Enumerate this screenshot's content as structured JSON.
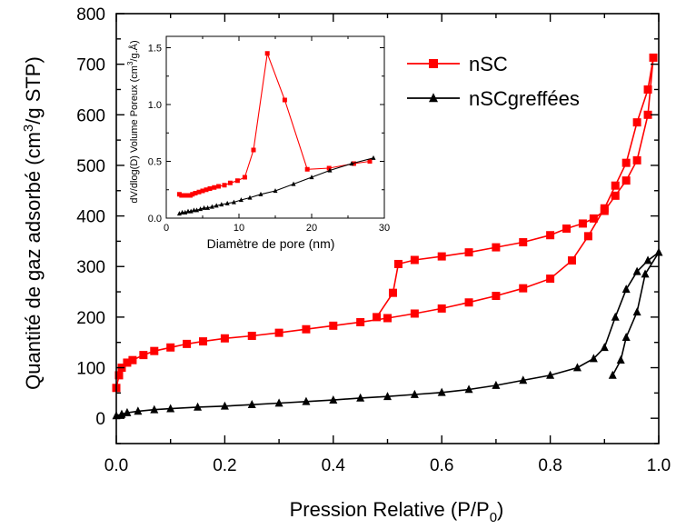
{
  "chart_data": [
    {
      "type": "scatter",
      "xlabel": "Pression Relative (P/P",
      "xlabel_sub": "0",
      "xlabel_end": ")",
      "ylabel": "Quantité de gaz adsorbé (cm",
      "ylabel_sup": "3",
      "ylabel_end": "/g STP)",
      "xlim": [
        0.0,
        1.0
      ],
      "ylim": [
        -50,
        800
      ],
      "xticks": [
        "0.0",
        "0.2",
        "0.4",
        "0.6",
        "0.8",
        "1.0"
      ],
      "yticks": [
        "0",
        "100",
        "200",
        "300",
        "400",
        "500",
        "600",
        "700",
        "800"
      ],
      "legend_position": "top-right",
      "series": [
        {
          "name": "nSC",
          "color": "#ff0000",
          "marker": "square",
          "x": [
            0.0,
            0.005,
            0.01,
            0.02,
            0.03,
            0.05,
            0.07,
            0.1,
            0.13,
            0.16,
            0.2,
            0.25,
            0.3,
            0.35,
            0.4,
            0.45,
            0.5,
            0.55,
            0.6,
            0.65,
            0.7,
            0.75,
            0.8,
            0.84,
            0.87,
            0.9,
            0.92,
            0.94,
            0.96,
            0.98,
            0.99,
            0.98,
            0.96,
            0.94,
            0.92,
            0.9,
            0.88,
            0.86,
            0.83,
            0.8,
            0.75,
            0.7,
            0.65,
            0.6,
            0.55,
            0.52,
            0.51,
            0.48
          ],
          "y": [
            60,
            85,
            100,
            110,
            115,
            125,
            133,
            140,
            147,
            152,
            158,
            163,
            169,
            176,
            183,
            190,
            198,
            207,
            217,
            229,
            242,
            257,
            276,
            312,
            360,
            415,
            460,
            505,
            585,
            650,
            713,
            600,
            510,
            470,
            440,
            410,
            395,
            385,
            375,
            362,
            348,
            338,
            328,
            320,
            313,
            305,
            248,
            200
          ]
        },
        {
          "name": "nSCgreffées",
          "color": "#000000",
          "marker": "triangle",
          "x": [
            0.0,
            0.01,
            0.02,
            0.04,
            0.07,
            0.1,
            0.15,
            0.2,
            0.25,
            0.3,
            0.35,
            0.4,
            0.45,
            0.5,
            0.55,
            0.6,
            0.65,
            0.7,
            0.75,
            0.8,
            0.85,
            0.88,
            0.9,
            0.92,
            0.94,
            0.96,
            0.98,
            1.0,
            0.975,
            0.96,
            0.94,
            0.93,
            0.915
          ],
          "y": [
            5,
            8,
            11,
            14,
            17,
            19,
            22,
            24,
            27,
            30,
            33,
            36,
            40,
            43,
            47,
            51,
            57,
            65,
            75,
            85,
            100,
            118,
            140,
            200,
            255,
            290,
            312,
            328,
            285,
            210,
            160,
            115,
            85
          ]
        }
      ]
    },
    {
      "type": "line",
      "inset": true,
      "xlabel": "Diamètre de pore (nm)",
      "ylabel": "dV/dlog(D) Volume Poreux (cm",
      "ylabel_sup": "3",
      "ylabel_end": "/g.Å)",
      "xlim": [
        0,
        30
      ],
      "ylim": [
        0,
        1.6
      ],
      "xticks": [
        "0",
        "10",
        "20",
        "30"
      ],
      "yticks": [
        "0.0",
        "0.5",
        "1.0",
        "1.5"
      ],
      "series": [
        {
          "name": "nSC",
          "color": "#ff0000",
          "marker": "square",
          "x": [
            1.8,
            2.1,
            2.4,
            2.7,
            3.0,
            3.3,
            3.6,
            4.0,
            4.5,
            5.0,
            5.5,
            6.0,
            6.6,
            7.2,
            8.0,
            8.8,
            9.8,
            10.8,
            12.0,
            13.9,
            16.3,
            19.4,
            22.4,
            25.8,
            28.0
          ],
          "y": [
            0.21,
            0.2,
            0.2,
            0.2,
            0.2,
            0.2,
            0.21,
            0.22,
            0.23,
            0.24,
            0.25,
            0.26,
            0.27,
            0.28,
            0.29,
            0.31,
            0.33,
            0.36,
            0.6,
            1.45,
            1.04,
            0.43,
            0.44,
            0.48,
            0.5
          ]
        },
        {
          "name": "nSCgreffées",
          "color": "#000000",
          "marker": "triangle",
          "x": [
            1.8,
            2.2,
            2.6,
            3.0,
            3.4,
            3.8,
            4.2,
            4.7,
            5.2,
            5.7,
            6.3,
            6.9,
            7.6,
            8.4,
            9.3,
            10.3,
            11.5,
            13.0,
            15.0,
            17.5,
            20.0,
            22.5,
            25.5,
            28.5
          ],
          "y": [
            0.04,
            0.05,
            0.05,
            0.06,
            0.06,
            0.07,
            0.07,
            0.08,
            0.09,
            0.09,
            0.1,
            0.11,
            0.12,
            0.13,
            0.14,
            0.16,
            0.18,
            0.21,
            0.24,
            0.3,
            0.36,
            0.42,
            0.48,
            0.53
          ]
        }
      ]
    }
  ]
}
